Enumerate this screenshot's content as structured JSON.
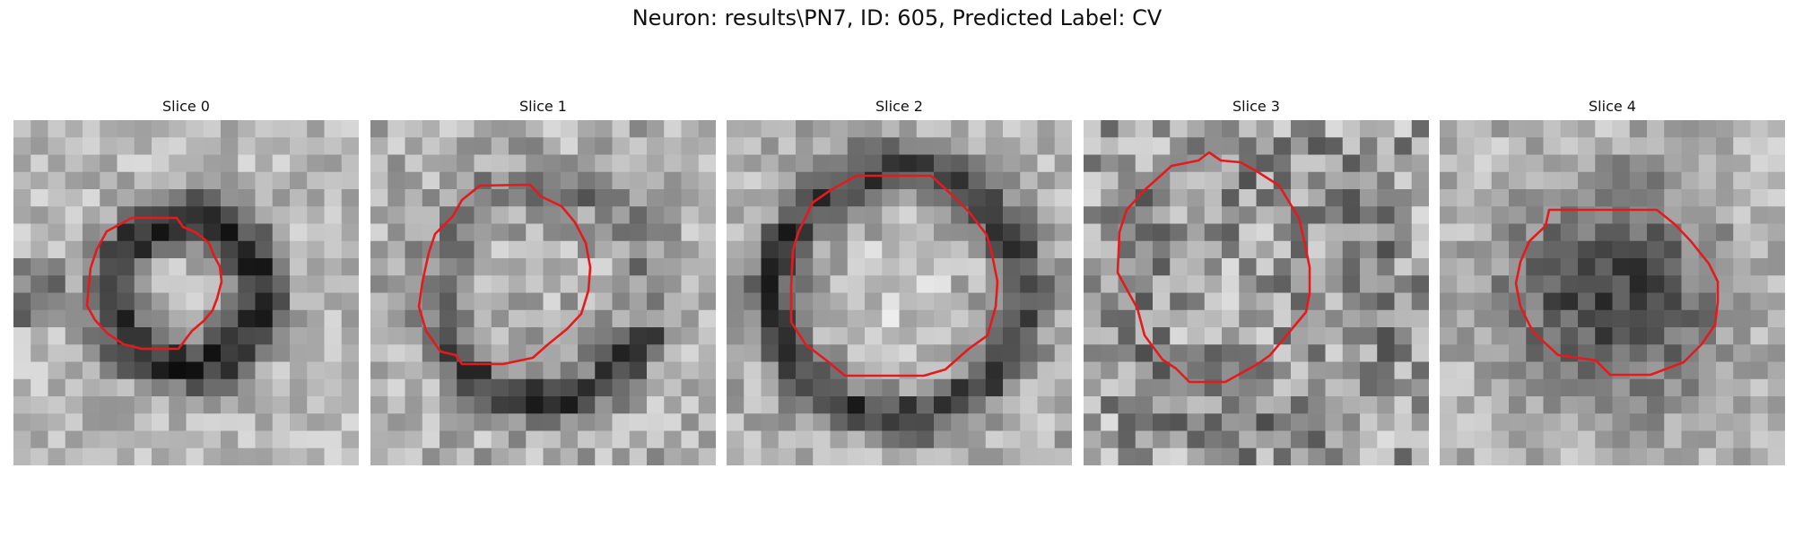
{
  "figure": {
    "title": "Neuron: results\\PN7, ID: 605, Predicted Label: CV",
    "contour_color": "#e41a1c",
    "colormap": "grayscale",
    "grid_size": 20
  },
  "slices": [
    {
      "title": "Slice 0",
      "pattern": "dark-ring-bright-center"
    },
    {
      "title": "Slice 1",
      "pattern": "bright-disk-dark-lower-rim"
    },
    {
      "title": "Slice 2",
      "pattern": "bright-disk-dark-rim"
    },
    {
      "title": "Slice 3",
      "pattern": "textured-gray"
    },
    {
      "title": "Slice 4",
      "pattern": "dark-blob"
    }
  ]
}
